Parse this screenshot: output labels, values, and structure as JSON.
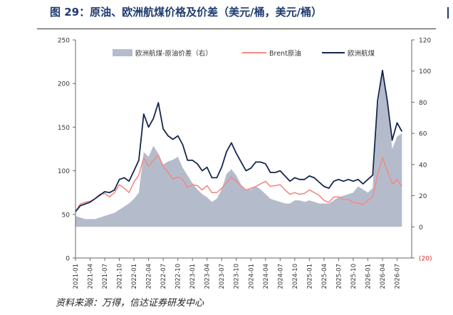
{
  "header": {
    "title": "图 29：原油、欧洲航煤价格及价差（美元/桶，美元/桶）"
  },
  "footer": {
    "source": "资料来源：万得，信达证券研发中心"
  },
  "colors": {
    "spread": "#b4bccc",
    "brent": "#f28b86",
    "jet": "#14264f",
    "title": "#1f3b70",
    "negative": "#d92b2b"
  },
  "chart_data": {
    "type": "line",
    "legend": {
      "position": "top",
      "entries": [
        "欧洲航煤-原油价差（右）",
        "Brent原油",
        "欧洲航煤"
      ]
    },
    "x": [
      "2021-01",
      "2021-04",
      "2021-07",
      "2021-10",
      "2022-01",
      "2022-04",
      "2022-07",
      "2022-10",
      "2023-01",
      "2023-04",
      "2023-07",
      "2023-10",
      "2024-01",
      "2024-04",
      "2024-07",
      "2024-10",
      "2025-01",
      "2025-04",
      "2025-07",
      "2025-10",
      "2026-01",
      "2026-04",
      "2026-07"
    ],
    "y_left": {
      "min": 0,
      "max": 250,
      "ticks": [
        0,
        50,
        100,
        150,
        200,
        250
      ]
    },
    "y_right": {
      "min": -20,
      "max": 120,
      "ticks": [
        "(20)",
        "0",
        "20",
        "40",
        "60",
        "80",
        "100",
        "120"
      ]
    },
    "grid": false,
    "series": [
      {
        "name": "欧洲航煤-原油价差（右）",
        "axis": "right",
        "kind": "area",
        "points": [
          [
            "2021-01",
            7
          ],
          [
            "2021-02",
            6
          ],
          [
            "2021-03",
            5
          ],
          [
            "2021-04",
            5
          ],
          [
            "2021-05",
            5
          ],
          [
            "2021-06",
            6
          ],
          [
            "2021-07",
            7
          ],
          [
            "2021-08",
            8
          ],
          [
            "2021-09",
            9
          ],
          [
            "2021-10",
            11
          ],
          [
            "2021-11",
            13
          ],
          [
            "2021-12",
            15
          ],
          [
            "2022-01",
            18
          ],
          [
            "2022-02",
            22
          ],
          [
            "2022-03",
            48
          ],
          [
            "2022-04",
            45
          ],
          [
            "2022-05",
            52
          ],
          [
            "2022-06",
            47
          ],
          [
            "2022-07",
            40
          ],
          [
            "2022-08",
            42
          ],
          [
            "2022-09",
            43
          ],
          [
            "2022-10",
            45
          ],
          [
            "2022-11",
            38
          ],
          [
            "2022-12",
            33
          ],
          [
            "2023-01",
            28
          ],
          [
            "2023-02",
            24
          ],
          [
            "2023-03",
            21
          ],
          [
            "2023-04",
            19
          ],
          [
            "2023-05",
            16
          ],
          [
            "2023-06",
            18
          ],
          [
            "2023-07",
            24
          ],
          [
            "2023-08",
            34
          ],
          [
            "2023-09",
            37
          ],
          [
            "2023-10",
            33
          ],
          [
            "2023-11",
            27
          ],
          [
            "2023-12",
            24
          ],
          [
            "2024-01",
            24
          ],
          [
            "2024-02",
            26
          ],
          [
            "2024-03",
            24
          ],
          [
            "2024-04",
            21
          ],
          [
            "2024-05",
            18
          ],
          [
            "2024-06",
            17
          ],
          [
            "2024-07",
            16
          ],
          [
            "2024-08",
            15
          ],
          [
            "2024-09",
            15
          ],
          [
            "2024-10",
            17
          ],
          [
            "2024-11",
            17
          ],
          [
            "2024-12",
            16
          ],
          [
            "2025-01",
            17
          ],
          [
            "2025-02",
            16
          ],
          [
            "2025-03",
            15
          ],
          [
            "2025-04",
            15
          ],
          [
            "2025-05",
            15
          ],
          [
            "2025-06",
            17
          ],
          [
            "2025-07",
            19
          ],
          [
            "2025-08",
            20
          ],
          [
            "2025-09",
            21
          ],
          [
            "2025-10",
            22
          ],
          [
            "2025-11",
            26
          ],
          [
            "2025-12",
            24
          ],
          [
            "2026-01",
            22
          ],
          [
            "2026-02",
            25
          ],
          [
            "2026-03",
            75
          ],
          [
            "2026-04",
            100
          ],
          [
            "2026-05",
            82
          ],
          [
            "2026-06",
            50
          ],
          [
            "2026-07",
            58
          ],
          [
            "2026-08",
            60
          ]
        ]
      },
      {
        "name": "Brent原油",
        "axis": "left",
        "kind": "line",
        "points": [
          [
            "2021-01",
            53
          ],
          [
            "2021-02",
            62
          ],
          [
            "2021-03",
            64
          ],
          [
            "2021-04",
            65
          ],
          [
            "2021-05",
            68
          ],
          [
            "2021-06",
            73
          ],
          [
            "2021-07",
            74
          ],
          [
            "2021-08",
            70
          ],
          [
            "2021-09",
            75
          ],
          [
            "2021-10",
            84
          ],
          [
            "2021-11",
            80
          ],
          [
            "2021-12",
            75
          ],
          [
            "2022-01",
            87
          ],
          [
            "2022-02",
            95
          ],
          [
            "2022-03",
            115
          ],
          [
            "2022-04",
            105
          ],
          [
            "2022-05",
            112
          ],
          [
            "2022-06",
            118
          ],
          [
            "2022-07",
            105
          ],
          [
            "2022-08",
            98
          ],
          [
            "2022-09",
            90
          ],
          [
            "2022-10",
            93
          ],
          [
            "2022-11",
            90
          ],
          [
            "2022-12",
            81
          ],
          [
            "2023-01",
            84
          ],
          [
            "2023-02",
            83
          ],
          [
            "2023-03",
            78
          ],
          [
            "2023-04",
            83
          ],
          [
            "2023-05",
            75
          ],
          [
            "2023-06",
            75
          ],
          [
            "2023-07",
            80
          ],
          [
            "2023-08",
            86
          ],
          [
            "2023-09",
            93
          ],
          [
            "2023-10",
            88
          ],
          [
            "2023-11",
            82
          ],
          [
            "2023-12",
            78
          ],
          [
            "2024-01",
            80
          ],
          [
            "2024-02",
            82
          ],
          [
            "2024-03",
            85
          ],
          [
            "2024-04",
            88
          ],
          [
            "2024-05",
            82
          ],
          [
            "2024-06",
            83
          ],
          [
            "2024-07",
            84
          ],
          [
            "2024-08",
            78
          ],
          [
            "2024-09",
            73
          ],
          [
            "2024-10",
            75
          ],
          [
            "2024-11",
            73
          ],
          [
            "2024-12",
            74
          ],
          [
            "2025-01",
            78
          ],
          [
            "2025-02",
            75
          ],
          [
            "2025-03",
            72
          ],
          [
            "2025-04",
            66
          ],
          [
            "2025-05",
            64
          ],
          [
            "2025-06",
            70
          ],
          [
            "2025-07",
            70
          ],
          [
            "2025-08",
            67
          ],
          [
            "2025-09",
            67
          ],
          [
            "2025-10",
            64
          ],
          [
            "2025-11",
            63
          ],
          [
            "2025-12",
            61
          ],
          [
            "2026-01",
            66
          ],
          [
            "2026-02",
            70
          ],
          [
            "2026-03",
            95
          ],
          [
            "2026-04",
            115
          ],
          [
            "2026-05",
            100
          ],
          [
            "2026-06",
            85
          ],
          [
            "2026-07",
            90
          ],
          [
            "2026-08",
            82
          ]
        ]
      },
      {
        "name": "欧洲航煤",
        "axis": "left",
        "kind": "line",
        "points": [
          [
            "2021-01",
            53
          ],
          [
            "2021-02",
            60
          ],
          [
            "2021-03",
            62
          ],
          [
            "2021-04",
            64
          ],
          [
            "2021-05",
            68
          ],
          [
            "2021-06",
            72
          ],
          [
            "2021-07",
            76
          ],
          [
            "2021-08",
            75
          ],
          [
            "2021-09",
            78
          ],
          [
            "2021-10",
            90
          ],
          [
            "2021-11",
            92
          ],
          [
            "2021-12",
            88
          ],
          [
            "2022-01",
            100
          ],
          [
            "2022-02",
            112
          ],
          [
            "2022-03",
            165
          ],
          [
            "2022-04",
            150
          ],
          [
            "2022-05",
            160
          ],
          [
            "2022-06",
            178
          ],
          [
            "2022-07",
            148
          ],
          [
            "2022-08",
            140
          ],
          [
            "2022-09",
            136
          ],
          [
            "2022-10",
            140
          ],
          [
            "2022-11",
            130
          ],
          [
            "2022-12",
            112
          ],
          [
            "2023-01",
            112
          ],
          [
            "2023-02",
            108
          ],
          [
            "2023-03",
            100
          ],
          [
            "2023-04",
            104
          ],
          [
            "2023-05",
            92
          ],
          [
            "2023-06",
            92
          ],
          [
            "2023-07",
            104
          ],
          [
            "2023-08",
            122
          ],
          [
            "2023-09",
            132
          ],
          [
            "2023-10",
            120
          ],
          [
            "2023-11",
            110
          ],
          [
            "2023-12",
            100
          ],
          [
            "2024-01",
            103
          ],
          [
            "2024-02",
            110
          ],
          [
            "2024-03",
            110
          ],
          [
            "2024-04",
            108
          ],
          [
            "2024-05",
            98
          ],
          [
            "2024-06",
            98
          ],
          [
            "2024-07",
            100
          ],
          [
            "2024-08",
            94
          ],
          [
            "2024-09",
            88
          ],
          [
            "2024-10",
            92
          ],
          [
            "2024-11",
            90
          ],
          [
            "2024-12",
            90
          ],
          [
            "2025-01",
            94
          ],
          [
            "2025-02",
            92
          ],
          [
            "2025-03",
            87
          ],
          [
            "2025-04",
            82
          ],
          [
            "2025-05",
            80
          ],
          [
            "2025-06",
            88
          ],
          [
            "2025-07",
            90
          ],
          [
            "2025-08",
            88
          ],
          [
            "2025-09",
            90
          ],
          [
            "2025-10",
            88
          ],
          [
            "2025-11",
            90
          ],
          [
            "2025-12",
            85
          ],
          [
            "2026-01",
            90
          ],
          [
            "2026-02",
            95
          ],
          [
            "2026-03",
            180
          ],
          [
            "2026-04",
            215
          ],
          [
            "2026-05",
            180
          ],
          [
            "2026-06",
            135
          ],
          [
            "2026-07",
            155
          ],
          [
            "2026-08",
            145
          ]
        ]
      }
    ]
  }
}
